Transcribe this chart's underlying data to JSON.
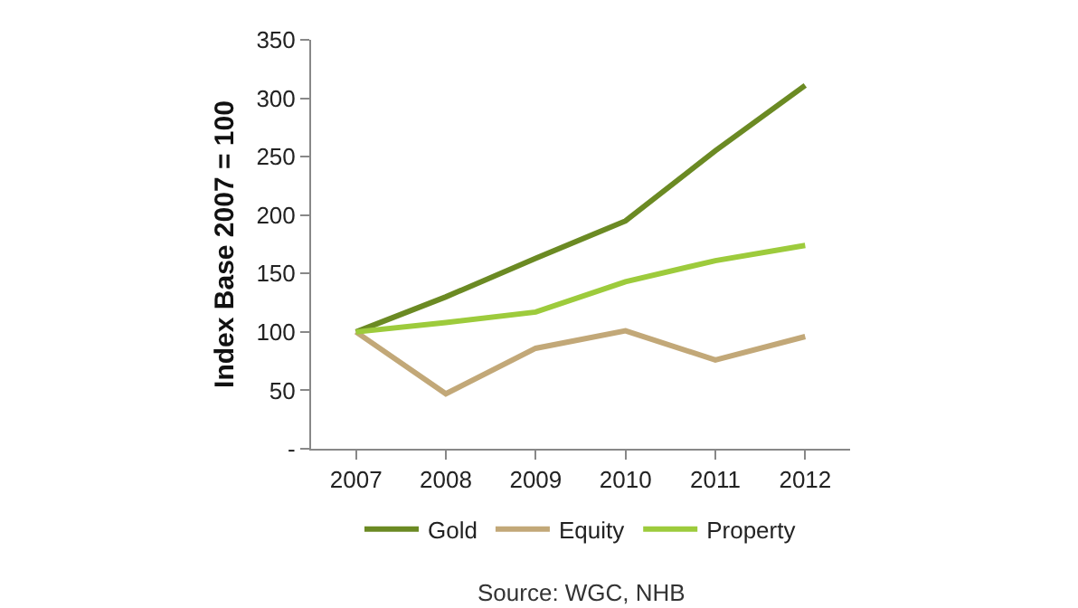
{
  "chart_data": {
    "type": "line",
    "ylabel": "Index Base 2007 = 100",
    "categories": [
      "2007",
      "2008",
      "2009",
      "2010",
      "2011",
      "2012"
    ],
    "series": [
      {
        "name": "Gold",
        "color": "#6b8a23",
        "values": [
          100,
          130,
          163,
          195,
          255,
          311
        ]
      },
      {
        "name": "Equity",
        "color": "#c2a878",
        "values": [
          100,
          47,
          86,
          101,
          76,
          96
        ]
      },
      {
        "name": "Property",
        "color": "#9dcb3c",
        "values": [
          100,
          108,
          117,
          143,
          161,
          174
        ]
      }
    ],
    "ylim": [
      0,
      350
    ],
    "yticks": [
      {
        "value": 0,
        "label": "-"
      },
      50,
      100,
      150,
      200,
      250,
      300,
      350
    ],
    "grid": false,
    "legend": "bottom",
    "marker": "none",
    "line_style": "solid",
    "annotations": [
      "Source: WGC, NHB"
    ]
  }
}
